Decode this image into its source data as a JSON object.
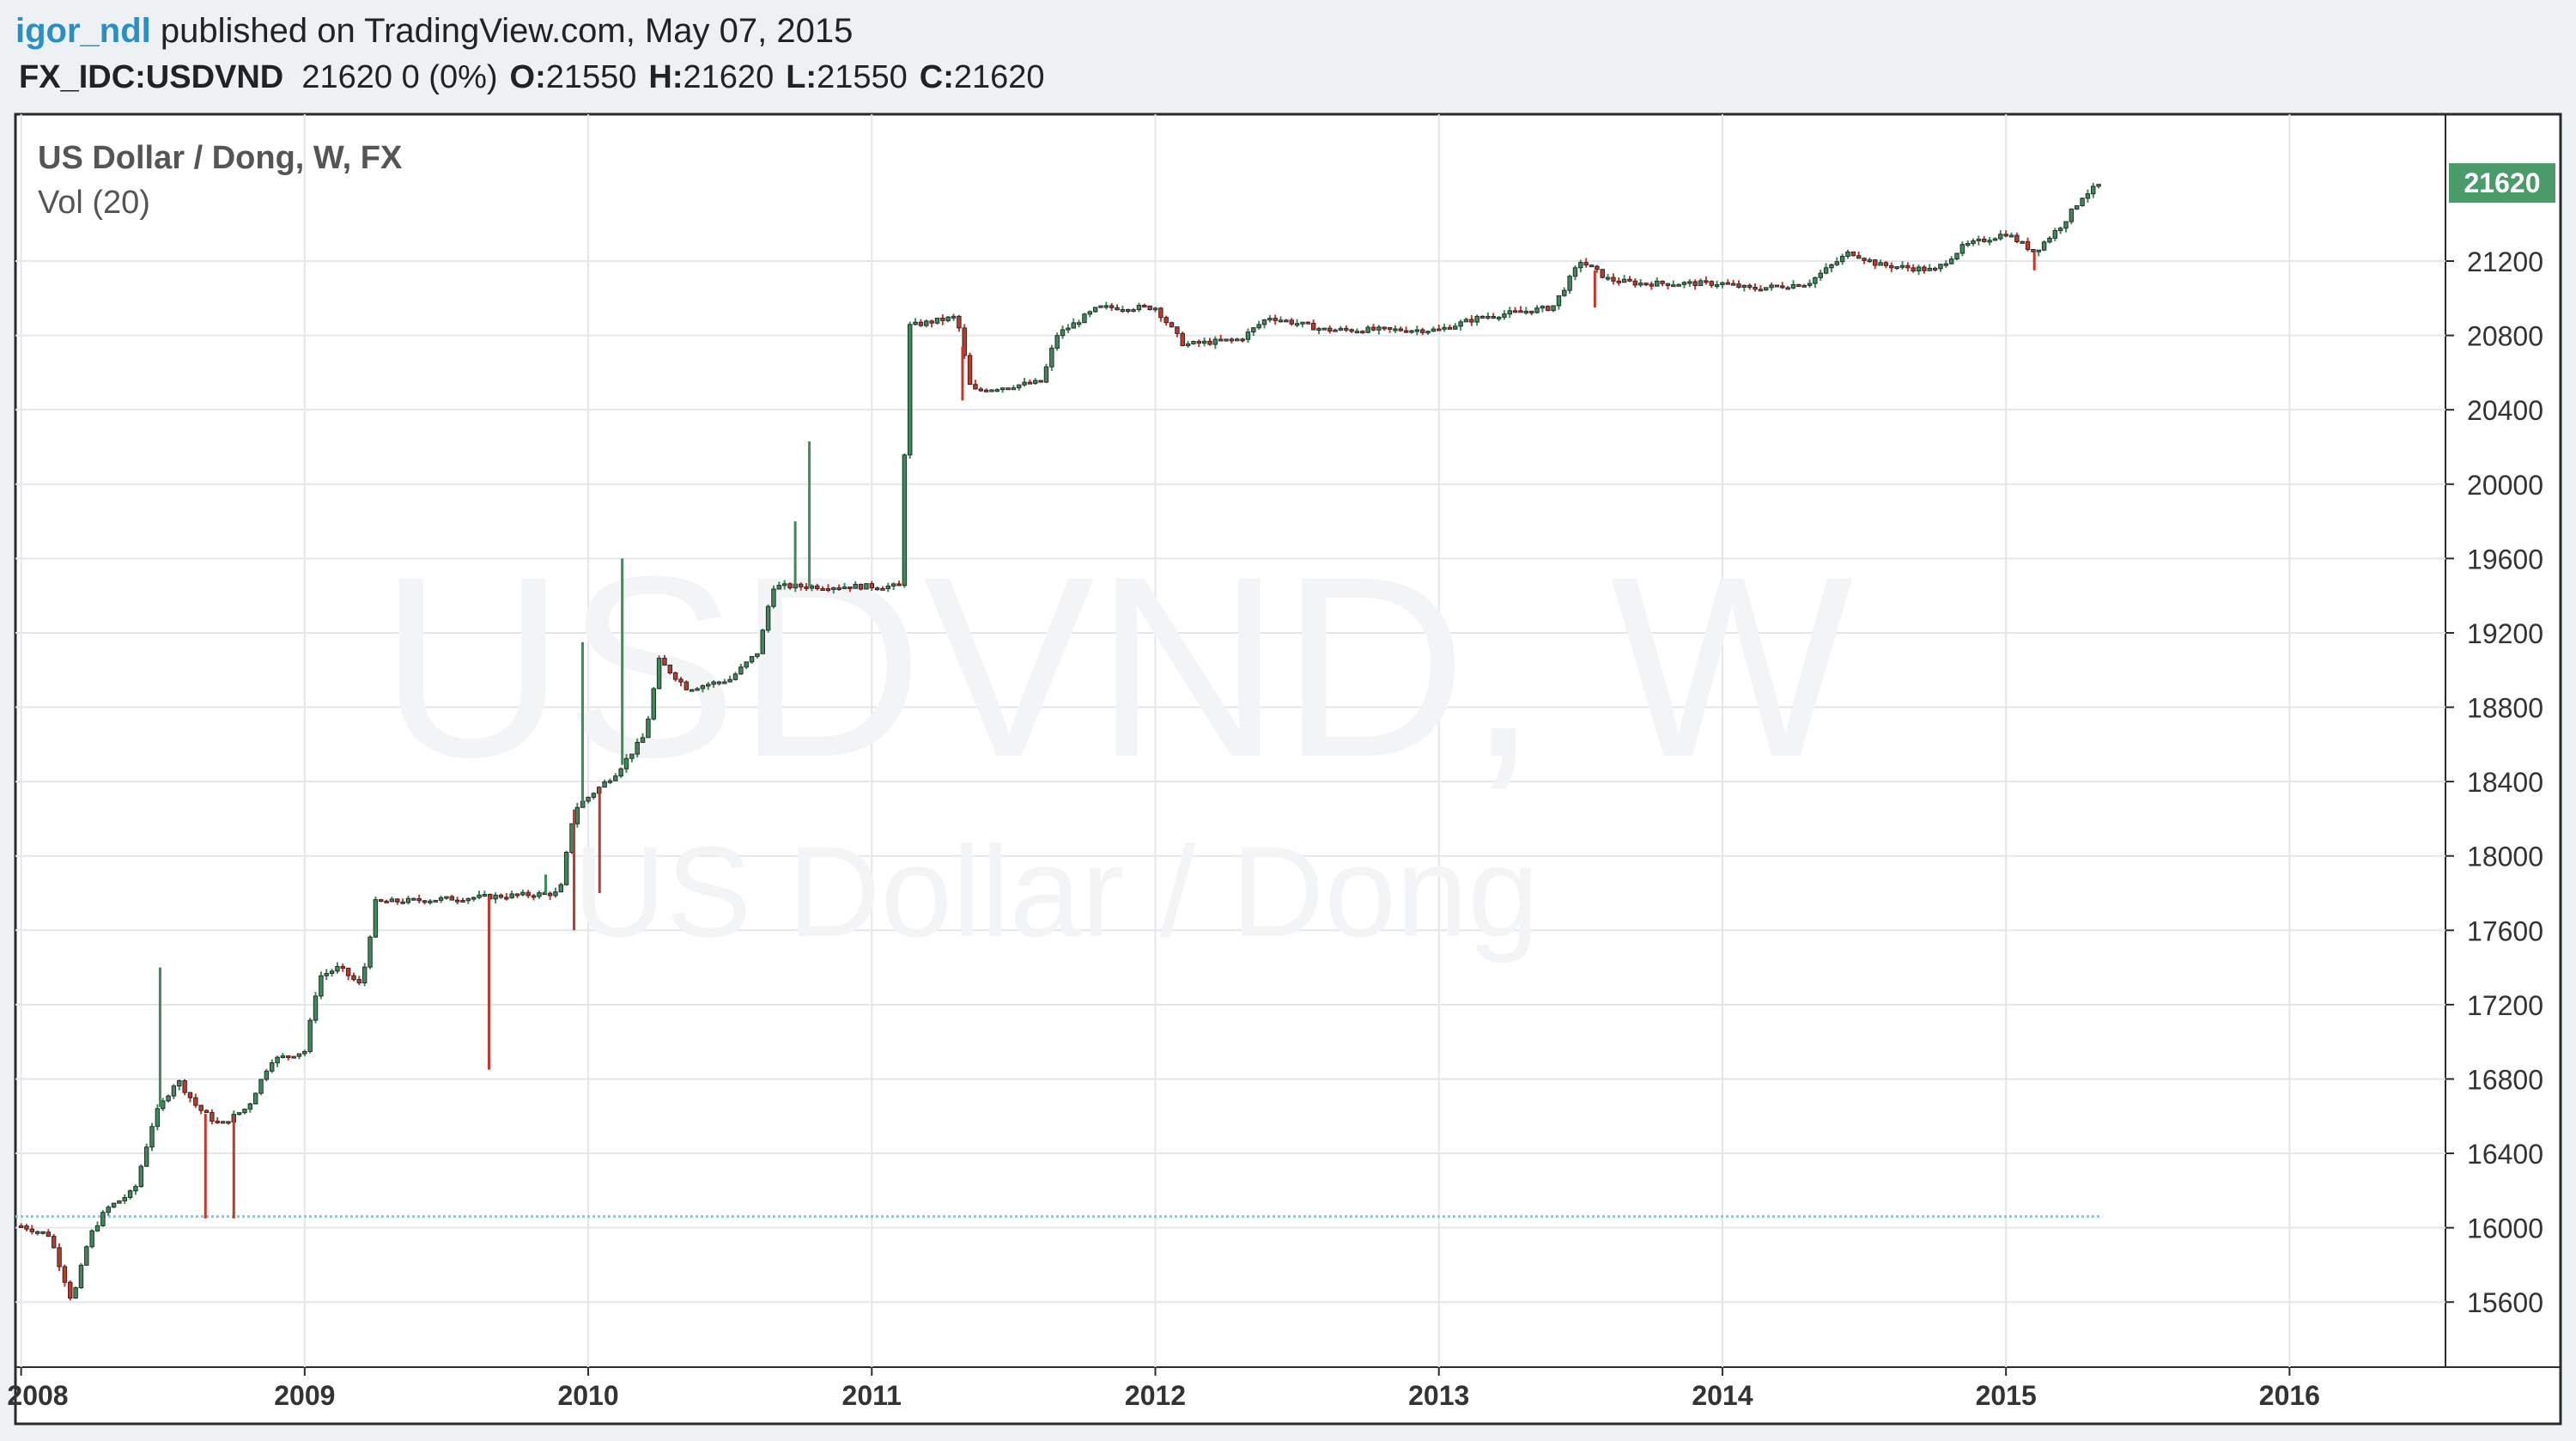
{
  "header": {
    "author": "igor_ndl",
    "published_text": "published on TradingView.com, May 07, 2015",
    "symbol": "FX_IDC:USDVND",
    "last": "21620",
    "change": "0 (0%)",
    "o_label": "O:",
    "o_value": "21550",
    "h_label": "H:",
    "h_value": "21620",
    "l_label": "L:",
    "l_value": "21550",
    "c_label": "C:",
    "c_value": "21620"
  },
  "chart": {
    "legend_title": "US Dollar / Dong, W, FX",
    "volume_label": "Vol (20)",
    "watermark_big": "USDVND, W",
    "watermark_small": "US Dollar / Dong",
    "last_price_tag": "21620",
    "colors": {
      "up": "#3e8a5a",
      "down": "#c0392b",
      "grid": "#e3e6ea",
      "baseline": "#8ec5d6",
      "price_tag": "#4a9a6a",
      "frame": "#2a2a2a",
      "watermark": "#f3f4f6"
    }
  },
  "chart_data": {
    "type": "candlestick",
    "title": "US Dollar / Dong, W, FX",
    "x_axis": {
      "type": "time",
      "range": [
        2007.98,
        2016.55
      ],
      "ticks": [
        "2008",
        "2009",
        "2010",
        "2011",
        "2012",
        "2013",
        "2014",
        "2015",
        "2016"
      ]
    },
    "y_axis": {
      "range": [
        15250,
        21990
      ],
      "position": "right",
      "ticks": [
        15600,
        16000,
        16400,
        16800,
        17200,
        17600,
        18000,
        18400,
        18800,
        19200,
        19600,
        20000,
        20400,
        20800,
        21200
      ]
    },
    "baseline_value": 16060,
    "last_price": 21620,
    "grid": true,
    "key_points": [
      {
        "t": 2008.0,
        "close": 16010
      },
      {
        "t": 2008.1,
        "close": 15960
      },
      {
        "t": 2008.18,
        "close": 15600
      },
      {
        "t": 2008.24,
        "close": 15950
      },
      {
        "t": 2008.3,
        "close": 16100
      },
      {
        "t": 2008.4,
        "close": 16200
      },
      {
        "t": 2008.47,
        "close": 16600
      },
      {
        "t": 2008.55,
        "close": 16800
      },
      {
        "t": 2008.62,
        "close": 16650
      },
      {
        "t": 2008.7,
        "close": 16550
      },
      {
        "t": 2008.8,
        "close": 16650
      },
      {
        "t": 2008.88,
        "close": 16900
      },
      {
        "t": 2009.0,
        "close": 16950
      },
      {
        "t": 2009.05,
        "close": 17350
      },
      {
        "t": 2009.12,
        "close": 17400
      },
      {
        "t": 2009.2,
        "close": 17300
      },
      {
        "t": 2009.25,
        "close": 17750
      },
      {
        "t": 2009.9,
        "close": 17800
      },
      {
        "t": 2009.95,
        "close": 18250
      },
      {
        "t": 2010.1,
        "close": 18450
      },
      {
        "t": 2010.2,
        "close": 18650
      },
      {
        "t": 2010.25,
        "close": 19050
      },
      {
        "t": 2010.35,
        "close": 18900
      },
      {
        "t": 2010.5,
        "close": 18950
      },
      {
        "t": 2010.6,
        "close": 19100
      },
      {
        "t": 2010.65,
        "close": 19450
      },
      {
        "t": 2011.1,
        "close": 19450
      },
      {
        "t": 2011.13,
        "close": 20850
      },
      {
        "t": 2011.3,
        "close": 20900
      },
      {
        "t": 2011.35,
        "close": 20500
      },
      {
        "t": 2011.6,
        "close": 20550
      },
      {
        "t": 2011.65,
        "close": 20800
      },
      {
        "t": 2011.8,
        "close": 20950
      },
      {
        "t": 2012.0,
        "close": 20950
      },
      {
        "t": 2012.1,
        "close": 20750
      },
      {
        "t": 2012.3,
        "close": 20780
      },
      {
        "t": 2012.4,
        "close": 20900
      },
      {
        "t": 2012.6,
        "close": 20830
      },
      {
        "t": 2013.0,
        "close": 20830
      },
      {
        "t": 2013.15,
        "close": 20900
      },
      {
        "t": 2013.4,
        "close": 20950
      },
      {
        "t": 2013.5,
        "close": 21200
      },
      {
        "t": 2013.6,
        "close": 21100
      },
      {
        "t": 2013.7,
        "close": 21080
      },
      {
        "t": 2014.0,
        "close": 21080
      },
      {
        "t": 2014.1,
        "close": 21050
      },
      {
        "t": 2014.3,
        "close": 21080
      },
      {
        "t": 2014.45,
        "close": 21250
      },
      {
        "t": 2014.55,
        "close": 21180
      },
      {
        "t": 2014.75,
        "close": 21150
      },
      {
        "t": 2014.85,
        "close": 21280
      },
      {
        "t": 2015.0,
        "close": 21350
      },
      {
        "t": 2015.1,
        "close": 21250
      },
      {
        "t": 2015.2,
        "close": 21400
      },
      {
        "t": 2015.27,
        "close": 21550
      },
      {
        "t": 2015.34,
        "close": 21620
      }
    ],
    "wick_spikes": [
      {
        "t": 2008.49,
        "high": 17400
      },
      {
        "t": 2008.65,
        "low": 16050
      },
      {
        "t": 2008.75,
        "low": 16050
      },
      {
        "t": 2009.65,
        "low": 16850
      },
      {
        "t": 2009.85,
        "high": 17900
      },
      {
        "t": 2009.95,
        "low": 17600
      },
      {
        "t": 2009.98,
        "high": 19150
      },
      {
        "t": 2010.04,
        "low": 17800
      },
      {
        "t": 2010.12,
        "high": 19600
      },
      {
        "t": 2010.78,
        "high": 20230
      },
      {
        "t": 2010.73,
        "high": 19800
      },
      {
        "t": 2011.32,
        "low": 20450
      },
      {
        "t": 2013.55,
        "low": 20950
      },
      {
        "t": 2015.1,
        "low": 21150
      }
    ]
  }
}
